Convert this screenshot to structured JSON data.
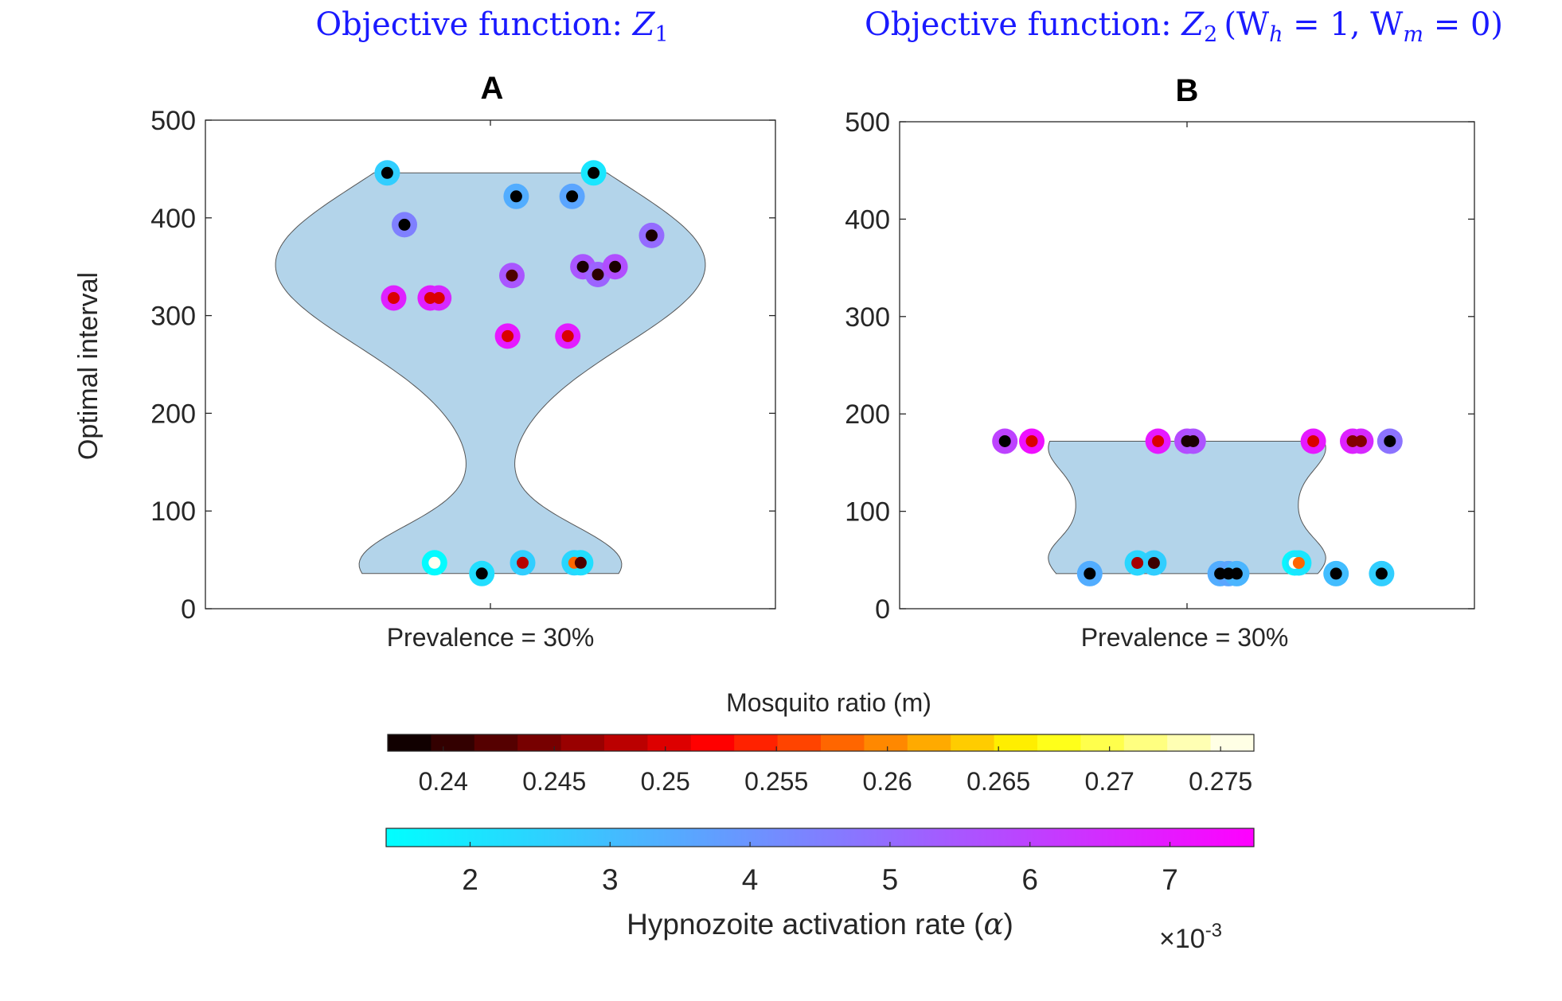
{
  "chart_data": [
    {
      "type": "scatter",
      "panel": "A",
      "header": "Objective function: ",
      "header_symbol": "Z",
      "header_sub": "1",
      "title": "A",
      "xlabel": "Prevalence = 30%",
      "ylabel": "Optimal interval",
      "ylim": [
        0,
        500
      ],
      "yticks": [
        0,
        100,
        200,
        300,
        400,
        500
      ],
      "yticklabels": [
        "0",
        "100",
        "200",
        "300",
        "400",
        "500"
      ],
      "violin_range": [
        36,
        446
      ],
      "points": [
        {
          "x": -0.48,
          "y": 446,
          "m": 0.2375,
          "alpha": 0.0026
        },
        {
          "x": 0.48,
          "y": 446,
          "m": 0.2375,
          "alpha": 0.002
        },
        {
          "x": 0.12,
          "y": 422,
          "m": 0.2375,
          "alpha": 0.0034
        },
        {
          "x": 0.38,
          "y": 422,
          "m": 0.2375,
          "alpha": 0.0036
        },
        {
          "x": -0.4,
          "y": 393,
          "m": 0.2375,
          "alpha": 0.0045
        },
        {
          "x": 0.75,
          "y": 382,
          "m": 0.239,
          "alpha": 0.005
        },
        {
          "x": 0.1,
          "y": 341,
          "m": 0.242,
          "alpha": 0.0055
        },
        {
          "x": 0.43,
          "y": 350,
          "m": 0.239,
          "alpha": 0.0055
        },
        {
          "x": 0.5,
          "y": 342,
          "m": 0.24,
          "alpha": 0.0052
        },
        {
          "x": 0.58,
          "y": 350,
          "m": 0.239,
          "alpha": 0.0057
        },
        {
          "x": -0.45,
          "y": 318,
          "m": 0.25,
          "alpha": 0.0068
        },
        {
          "x": -0.28,
          "y": 318,
          "m": 0.25,
          "alpha": 0.0069
        },
        {
          "x": -0.24,
          "y": 318,
          "m": 0.25,
          "alpha": 0.0066
        },
        {
          "x": 0.08,
          "y": 279,
          "m": 0.25,
          "alpha": 0.007
        },
        {
          "x": 0.36,
          "y": 279,
          "m": 0.25,
          "alpha": 0.0069
        },
        {
          "x": -0.26,
          "y": 47,
          "m": 0.276,
          "alpha": 0.0015
        },
        {
          "x": -0.04,
          "y": 36,
          "m": 0.2375,
          "alpha": 0.0022
        },
        {
          "x": 0.15,
          "y": 47,
          "m": 0.248,
          "alpha": 0.0026
        },
        {
          "x": 0.39,
          "y": 47,
          "m": 0.258,
          "alpha": 0.0024
        },
        {
          "x": 0.42,
          "y": 47,
          "m": 0.242,
          "alpha": 0.0022
        }
      ]
    },
    {
      "type": "scatter",
      "panel": "B",
      "header": "Objective function: ",
      "header_symbol": "Z",
      "header_sub": "2",
      "header_params": "(W",
      "header_params_sub1": "h",
      "header_params_mid": " = 1,  W",
      "header_params_sub2": "m",
      "header_params_end": " = 0)",
      "title": "B",
      "xlabel": "Prevalence = 30%",
      "ylim": [
        0,
        500
      ],
      "yticks": [
        0,
        100,
        200,
        300,
        400,
        500
      ],
      "yticklabels": [
        "0",
        "100",
        "200",
        "300",
        "400",
        "500"
      ],
      "violin_range": [
        36,
        172
      ],
      "points": [
        {
          "x": -0.88,
          "y": 172,
          "m": 0.2375,
          "alpha": 0.006
        },
        {
          "x": -0.75,
          "y": 172,
          "m": 0.25,
          "alpha": 0.0072
        },
        {
          "x": -0.14,
          "y": 172,
          "m": 0.25,
          "alpha": 0.007
        },
        {
          "x": 0.0,
          "y": 172,
          "m": 0.239,
          "alpha": 0.0058
        },
        {
          "x": 0.03,
          "y": 172,
          "m": 0.239,
          "alpha": 0.0056
        },
        {
          "x": 0.61,
          "y": 172,
          "m": 0.25,
          "alpha": 0.007
        },
        {
          "x": 0.8,
          "y": 172,
          "m": 0.245,
          "alpha": 0.0068
        },
        {
          "x": 0.84,
          "y": 172,
          "m": 0.245,
          "alpha": 0.0066
        },
        {
          "x": 0.98,
          "y": 172,
          "m": 0.2375,
          "alpha": 0.0048
        },
        {
          "x": -0.47,
          "y": 36,
          "m": 0.2375,
          "alpha": 0.0034
        },
        {
          "x": -0.24,
          "y": 47,
          "m": 0.247,
          "alpha": 0.0024
        },
        {
          "x": -0.16,
          "y": 47,
          "m": 0.241,
          "alpha": 0.0026
        },
        {
          "x": 0.16,
          "y": 36,
          "m": 0.2375,
          "alpha": 0.0034
        },
        {
          "x": 0.2,
          "y": 36,
          "m": 0.2375,
          "alpha": 0.0036
        },
        {
          "x": 0.24,
          "y": 36,
          "m": 0.2375,
          "alpha": 0.0032
        },
        {
          "x": 0.52,
          "y": 47,
          "m": 0.276,
          "alpha": 0.0016
        },
        {
          "x": 0.54,
          "y": 47,
          "m": 0.258,
          "alpha": 0.002
        },
        {
          "x": 0.72,
          "y": 36,
          "m": 0.2375,
          "alpha": 0.003
        },
        {
          "x": 0.94,
          "y": 36,
          "m": 0.2375,
          "alpha": 0.0026
        }
      ]
    },
    {
      "type": "colorbar",
      "title": "Mosquito ratio (m)",
      "range": [
        0.2375,
        0.2765
      ],
      "levels": 20,
      "colormap": "hot",
      "ticks": [
        0.24,
        0.245,
        0.25,
        0.255,
        0.26,
        0.265,
        0.27,
        0.275
      ],
      "ticklabels": [
        "0.24",
        "0.245",
        "0.25",
        "0.255",
        "0.26",
        "0.265",
        "0.27",
        "0.275"
      ]
    },
    {
      "type": "colorbar",
      "title": "Hypnozoite activation rate (",
      "title_symbol": "α",
      "title_end": ")",
      "range": [
        0.0014,
        0.0076
      ],
      "colormap": "cool",
      "ticks": [
        2,
        3,
        4,
        5,
        6,
        7
      ],
      "ticklabels": [
        "2",
        "3",
        "4",
        "5",
        "6",
        "7"
      ],
      "exponent_prefix": "×10",
      "exponent": "-3"
    }
  ],
  "colors": {
    "header": "#1a1aff",
    "violin_fill": "#b3d4ea",
    "axis": "#262626"
  }
}
